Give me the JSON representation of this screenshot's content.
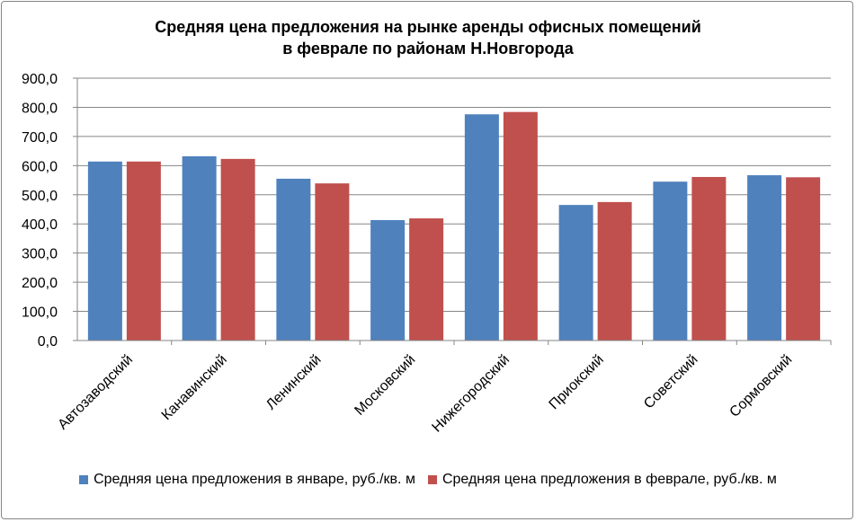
{
  "chart_data": {
    "type": "bar",
    "title_line1": "Средняя цена предложения на рынке аренды офисных помещений",
    "title_line2": "в феврале по районам Н.Новгорода",
    "categories": [
      "Автозаводский",
      "Канавинский",
      "Ленинский",
      "Московский",
      "Нижегородский",
      "Приокский",
      "Советский",
      "Сормовский"
    ],
    "series": [
      {
        "name": "Средняя цена предложения в январе, руб./кв. м",
        "color": "#4F81BD",
        "values": [
          614,
          632,
          555,
          413,
          776,
          465,
          545,
          567
        ]
      },
      {
        "name": "Средняя цена предложения в феврале, руб./кв. м",
        "color": "#C0504D",
        "values": [
          614,
          623,
          539,
          419,
          784,
          475,
          561,
          560
        ]
      }
    ],
    "ylim": [
      0,
      900
    ],
    "yticks": [
      "0,0",
      "100,0",
      "200,0",
      "300,0",
      "400,0",
      "500,0",
      "600,0",
      "700,0",
      "800,0",
      "900,0"
    ],
    "grid": true,
    "legend": "bottom"
  }
}
